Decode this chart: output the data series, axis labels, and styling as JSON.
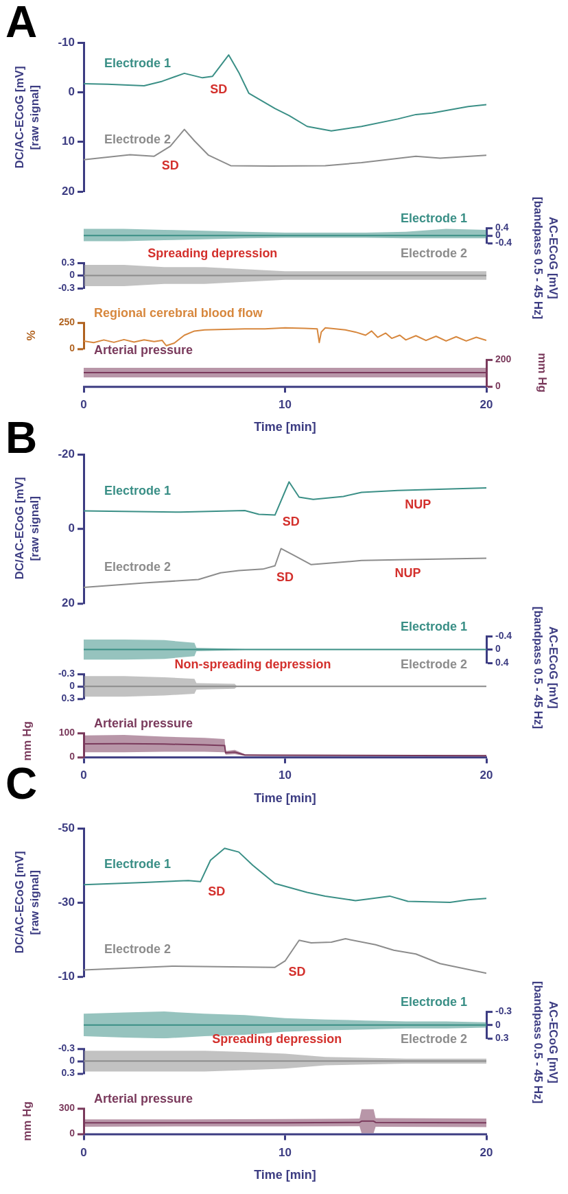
{
  "chart_data": [
    {
      "type": "line",
      "title": "A",
      "ylabel": "DC/AC-ECoG [mV]\n[raw signal]",
      "xlim": [
        0,
        20
      ],
      "ylim": [
        20,
        -10
      ],
      "yticks": [
        -10,
        0,
        10,
        20
      ],
      "tick_labels": "y",
      "series": [
        {
          "name": "Electrode 1",
          "color": "#3a8f86",
          "x": [
            0,
            1.2,
            3.0,
            3.9,
            5.0,
            5.9,
            6.4,
            7.2,
            7.7,
            8.2,
            9.5,
            10.2,
            11.1,
            12.3,
            13.8,
            15.6,
            16.5,
            17.3,
            19.1,
            20
          ],
          "values": [
            -1.7,
            -1.6,
            -1.3,
            -2.2,
            -3.8,
            -2.9,
            -3.2,
            -7.5,
            -4,
            0.2,
            3.3,
            4.7,
            6.9,
            7.8,
            6.9,
            5.4,
            4.5,
            4.2,
            2.9,
            2.5
          ]
        },
        {
          "name": "Electrode 2",
          "color": "#8c8c8c",
          "x": [
            0,
            2.3,
            3.5,
            4.3,
            5.0,
            5.5,
            6.2,
            7.3,
            9.3,
            12.0,
            13.8,
            16.5,
            17.7,
            20
          ],
          "values": [
            13.6,
            12.6,
            12.9,
            10.9,
            7.5,
            9.8,
            12.7,
            14.8,
            14.9,
            14.8,
            14.2,
            12.9,
            13.3,
            12.7
          ]
        }
      ],
      "annotations": [
        "SD",
        "SD"
      ]
    },
    {
      "type": "line",
      "y2label": "AC-ECoG [mV]\n[bandpass 0.5 - 45 Hz]",
      "xlim": [
        0,
        20
      ],
      "y2lim": [
        -0.4,
        0.4
      ],
      "y2ticks": [
        -0.4,
        0,
        0.4
      ],
      "tick_labels": "y",
      "series": [
        {
          "name": "Electrode 1",
          "color": "#3a8f86",
          "axis": "y2",
          "x": [
            0,
            2,
            4,
            6,
            8,
            10,
            12,
            14,
            16,
            18,
            20
          ],
          "values": [
            0,
            0,
            0,
            0,
            0,
            0,
            0,
            0,
            0,
            0,
            0
          ],
          "lower": [
            -0.3,
            -0.3,
            -0.25,
            -0.2,
            -0.15,
            -0.12,
            -0.12,
            -0.12,
            -0.15,
            -0.15,
            -0.15
          ],
          "upper": [
            0.35,
            0.35,
            0.3,
            0.25,
            0.2,
            0.15,
            0.15,
            0.15,
            0.2,
            0.35,
            0.3
          ]
        }
      ]
    },
    {
      "type": "line",
      "xlim": [
        0,
        20
      ],
      "ylim": [
        -0.3,
        0.3
      ],
      "yticks": [
        -0.3,
        0,
        0.3
      ],
      "tick_labels": "y",
      "series": [
        {
          "name": "Electrode 2",
          "color": "#8c8c8c",
          "x": [
            0,
            2,
            4,
            6,
            8,
            10,
            12,
            14,
            16,
            18,
            20
          ],
          "values": [
            0,
            0,
            0,
            0,
            0,
            0,
            0,
            0,
            0,
            0,
            0
          ],
          "lower": [
            -0.25,
            -0.25,
            -0.2,
            -0.2,
            -0.15,
            -0.1,
            -0.1,
            -0.1,
            -0.1,
            -0.1,
            -0.1
          ],
          "upper": [
            0.25,
            0.25,
            0.2,
            0.2,
            0.15,
            0.1,
            0.1,
            0.1,
            0.1,
            0.1,
            0.1
          ]
        }
      ],
      "annotations": [
        "Spreading depression"
      ]
    },
    {
      "type": "line",
      "ylabel": "%",
      "xlim": [
        0,
        20
      ],
      "ylim": [
        0,
        250
      ],
      "yticks": [
        0,
        250
      ],
      "tick_labels": "y",
      "series": [
        {
          "name": "Regional cerebral blood flow",
          "color": "#d7873d",
          "x": [
            0,
            0.5,
            1,
            1.5,
            2,
            2.5,
            3,
            3.5,
            3.9,
            4.1,
            4.5,
            5,
            5.5,
            6,
            7,
            8,
            9,
            10,
            11,
            11.6,
            11.7,
            11.8,
            12,
            12.5,
            13,
            13.5,
            14,
            14.3,
            14.6,
            15,
            15.3,
            15.7,
            16,
            16.5,
            17,
            17.5,
            18,
            18.5,
            19,
            19.5,
            20
          ],
          "values": [
            75,
            60,
            85,
            62,
            88,
            65,
            85,
            70,
            80,
            30,
            55,
            130,
            170,
            180,
            185,
            190,
            190,
            200,
            195,
            190,
            60,
            160,
            200,
            190,
            180,
            160,
            130,
            170,
            110,
            150,
            100,
            130,
            85,
            125,
            80,
            120,
            75,
            115,
            75,
            110,
            80
          ]
        }
      ]
    },
    {
      "type": "line",
      "y2label": "mm Hg",
      "xlabel": "Time [min]",
      "xlim": [
        0,
        20
      ],
      "xticks": [
        0,
        10,
        20
      ],
      "y2lim": [
        0,
        200
      ],
      "y2ticks": [
        0,
        200
      ],
      "series": [
        {
          "name": "Arterial pressure",
          "color": "#7a3a5c",
          "axis": "y2",
          "x": [
            0,
            10,
            20
          ],
          "values": [
            103,
            103,
            103
          ],
          "lower": [
            67,
            67,
            67
          ],
          "upper": [
            139,
            139,
            139
          ]
        }
      ]
    },
    {
      "type": "line",
      "title": "B",
      "ylabel": "DC/AC-ECoG [mV]\n[raw signal]",
      "xlim": [
        0,
        20
      ],
      "ylim": [
        20,
        -20
      ],
      "yticks": [
        -20,
        0,
        20
      ],
      "tick_labels": "y",
      "series": [
        {
          "name": "Electrode 1",
          "color": "#3a8f86",
          "x": [
            0,
            4.8,
            8.0,
            8.7,
            9.5,
            10.2,
            10.7,
            11.4,
            12.9,
            13.8,
            15.6,
            20
          ],
          "values": [
            -4.8,
            -4.5,
            -4.9,
            -3.9,
            -3.7,
            -12.6,
            -8.5,
            -7.9,
            -8.7,
            -9.8,
            -10.3,
            -11.0
          ]
        },
        {
          "name": "Electrode 2",
          "color": "#8c8c8c",
          "x": [
            0,
            3.0,
            5.7,
            6.8,
            7.7,
            8.9,
            9.5,
            9.8,
            10.4,
            11.3,
            12.9,
            13.8,
            15.6,
            20
          ],
          "values": [
            15.7,
            14.5,
            13.6,
            11.8,
            11.2,
            10.8,
            9.9,
            5.3,
            7.0,
            9.6,
            8.9,
            8.5,
            8.3,
            7.9
          ]
        }
      ],
      "annotations": [
        "SD",
        "NUP",
        "SD",
        "NUP"
      ]
    },
    {
      "type": "line",
      "y2label": "AC-ECoG [mV]\n[bandpass 0.5 - 45 Hz]",
      "xlim": [
        0,
        20
      ],
      "y2lim": [
        0.4,
        -0.4
      ],
      "y2ticks": [
        -0.4,
        0,
        0.4
      ],
      "tick_labels": "y",
      "series": [
        {
          "name": "Electrode 1",
          "color": "#3a8f86",
          "axis": "y2",
          "x": [
            0,
            2,
            4,
            5.5,
            5.6,
            7,
            8,
            20
          ],
          "values": [
            0,
            0,
            0,
            0,
            0,
            0,
            0,
            0
          ],
          "lower": [
            -0.3,
            -0.3,
            -0.28,
            -0.2,
            -0.05,
            -0.03,
            -0.01,
            -0.01
          ],
          "upper": [
            0.3,
            0.3,
            0.28,
            0.2,
            0.05,
            0.03,
            0.01,
            0.01
          ]
        }
      ]
    },
    {
      "type": "line",
      "xlim": [
        0,
        20
      ],
      "ylim": [
        0.3,
        -0.3
      ],
      "yticks": [
        -0.3,
        0,
        0.3
      ],
      "tick_labels": "y",
      "series": [
        {
          "name": "Electrode 2",
          "color": "#8c8c8c",
          "x": [
            0,
            2,
            4,
            5.5,
            5.6,
            7.5,
            7.6,
            20
          ],
          "values": [
            0,
            0,
            0,
            0,
            0,
            0,
            0,
            0
          ],
          "lower": [
            -0.25,
            -0.25,
            -0.22,
            -0.18,
            -0.08,
            -0.06,
            -0.01,
            -0.01
          ],
          "upper": [
            0.25,
            0.25,
            0.22,
            0.18,
            0.08,
            0.06,
            0.01,
            0.01
          ]
        }
      ],
      "annotations": [
        "Non-spreading depression"
      ]
    },
    {
      "type": "line",
      "ylabel": "mm Hg",
      "xlabel": "Time [min]",
      "xlim": [
        0,
        20
      ],
      "xticks": [
        0,
        10,
        20
      ],
      "ylim": [
        0,
        100
      ],
      "yticks": [
        0,
        100
      ],
      "series": [
        {
          "name": "Arterial pressure",
          "color": "#7a3a5c",
          "x": [
            0,
            2,
            4,
            6,
            7,
            7.05,
            7.5,
            8,
            9,
            20
          ],
          "values": [
            55,
            56,
            54,
            51,
            48,
            18,
            21,
            9,
            8,
            6
          ],
          "lower": [
            20,
            20,
            22,
            22,
            20,
            10,
            12,
            5,
            5,
            3
          ],
          "upper": [
            90,
            92,
            85,
            80,
            75,
            25,
            30,
            12,
            10,
            8
          ]
        }
      ]
    },
    {
      "type": "line",
      "title": "C",
      "ylabel": "DC/AC-ECoG [mV]\n[raw signal]",
      "xlim": [
        0,
        20
      ],
      "ylim": [
        -10,
        -50
      ],
      "yticks": [
        -50,
        -30,
        -10
      ],
      "tick_labels": "y",
      "series": [
        {
          "name": "Electrode 1",
          "color": "#3a8f86",
          "x": [
            0,
            3.0,
            5.2,
            5.8,
            6.3,
            7.0,
            7.7,
            8.4,
            9.5,
            11.1,
            12.0,
            13.5,
            14.1,
            15.2,
            16.1,
            18.2,
            19.1,
            20
          ],
          "values": [
            -34.8,
            -35.4,
            -35.9,
            -35.6,
            -41.4,
            -44.6,
            -43.6,
            -40,
            -35.1,
            -32.7,
            -31.7,
            -30.5,
            -30.9,
            -31.7,
            -30.3,
            -30,
            -30.7,
            -31.1
          ]
        },
        {
          "name": "Electrode 2",
          "color": "#8c8c8c",
          "x": [
            0,
            4.4,
            9.5,
            10.0,
            10.7,
            11.3,
            12.3,
            13.0,
            14.5,
            15.4,
            16.5,
            17.7,
            20
          ],
          "values": [
            -11.8,
            -12.8,
            -12.5,
            -14.2,
            -19.8,
            -19.1,
            -19.3,
            -20.2,
            -18.6,
            -17.1,
            -16.1,
            -13.5,
            -10.9
          ]
        }
      ],
      "annotations": [
        "SD",
        "SD"
      ]
    },
    {
      "type": "line",
      "y2label": "AC-ECoG [mV]\n[bandpass 0.5 - 45 Hz]",
      "xlim": [
        0,
        20
      ],
      "y2lim": [
        0.3,
        -0.3
      ],
      "y2ticks": [
        -0.3,
        0,
        0.3
      ],
      "tick_labels": "y",
      "series": [
        {
          "name": "Electrode 1",
          "color": "#3a8f86",
          "axis": "y2",
          "x": [
            0,
            2,
            4,
            6,
            8,
            10,
            12,
            14,
            16,
            18,
            20
          ],
          "values": [
            0,
            0,
            0,
            0,
            0,
            0,
            0,
            0,
            0,
            0,
            0
          ],
          "lower": [
            -0.25,
            -0.28,
            -0.3,
            -0.25,
            -0.22,
            -0.15,
            -0.12,
            -0.1,
            -0.08,
            -0.08,
            -0.06
          ],
          "upper": [
            0.25,
            0.28,
            0.3,
            0.25,
            0.22,
            0.15,
            0.12,
            0.1,
            0.08,
            0.08,
            0.06
          ]
        }
      ]
    },
    {
      "type": "line",
      "xlim": [
        0,
        20
      ],
      "ylim": [
        0.3,
        -0.3
      ],
      "yticks": [
        -0.3,
        0,
        0.3
      ],
      "tick_labels": "y",
      "series": [
        {
          "name": "Electrode 2",
          "color": "#8c8c8c",
          "x": [
            0,
            2,
            4,
            6,
            8,
            10,
            12,
            14,
            16,
            18,
            20
          ],
          "values": [
            0,
            0,
            0,
            0,
            0,
            0,
            0,
            0,
            0,
            0,
            0
          ],
          "lower": [
            -0.25,
            -0.25,
            -0.25,
            -0.25,
            -0.22,
            -0.18,
            -0.1,
            -0.08,
            -0.06,
            -0.06,
            -0.06
          ],
          "upper": [
            0.25,
            0.25,
            0.25,
            0.25,
            0.22,
            0.18,
            0.1,
            0.08,
            0.06,
            0.06,
            0.06
          ]
        }
      ],
      "annotations": [
        "Spreading depression"
      ]
    },
    {
      "type": "line",
      "ylabel": "mm Hg",
      "xlabel": "Time [min]",
      "xlim": [
        0,
        20
      ],
      "xticks": [
        0,
        10,
        20
      ],
      "ylim": [
        0,
        300
      ],
      "yticks": [
        0,
        300
      ],
      "series": [
        {
          "name": "Arterial pressure",
          "color": "#7a3a5c",
          "x": [
            0,
            5,
            10,
            13.7,
            13.8,
            14.4,
            14.5,
            20
          ],
          "values": [
            130,
            130,
            130,
            135,
            150,
            150,
            135,
            130
          ],
          "lower": [
            85,
            88,
            88,
            90,
            10,
            10,
            85,
            80
          ],
          "upper": [
            170,
            170,
            175,
            180,
            290,
            290,
            185,
            180
          ]
        }
      ]
    }
  ]
}
